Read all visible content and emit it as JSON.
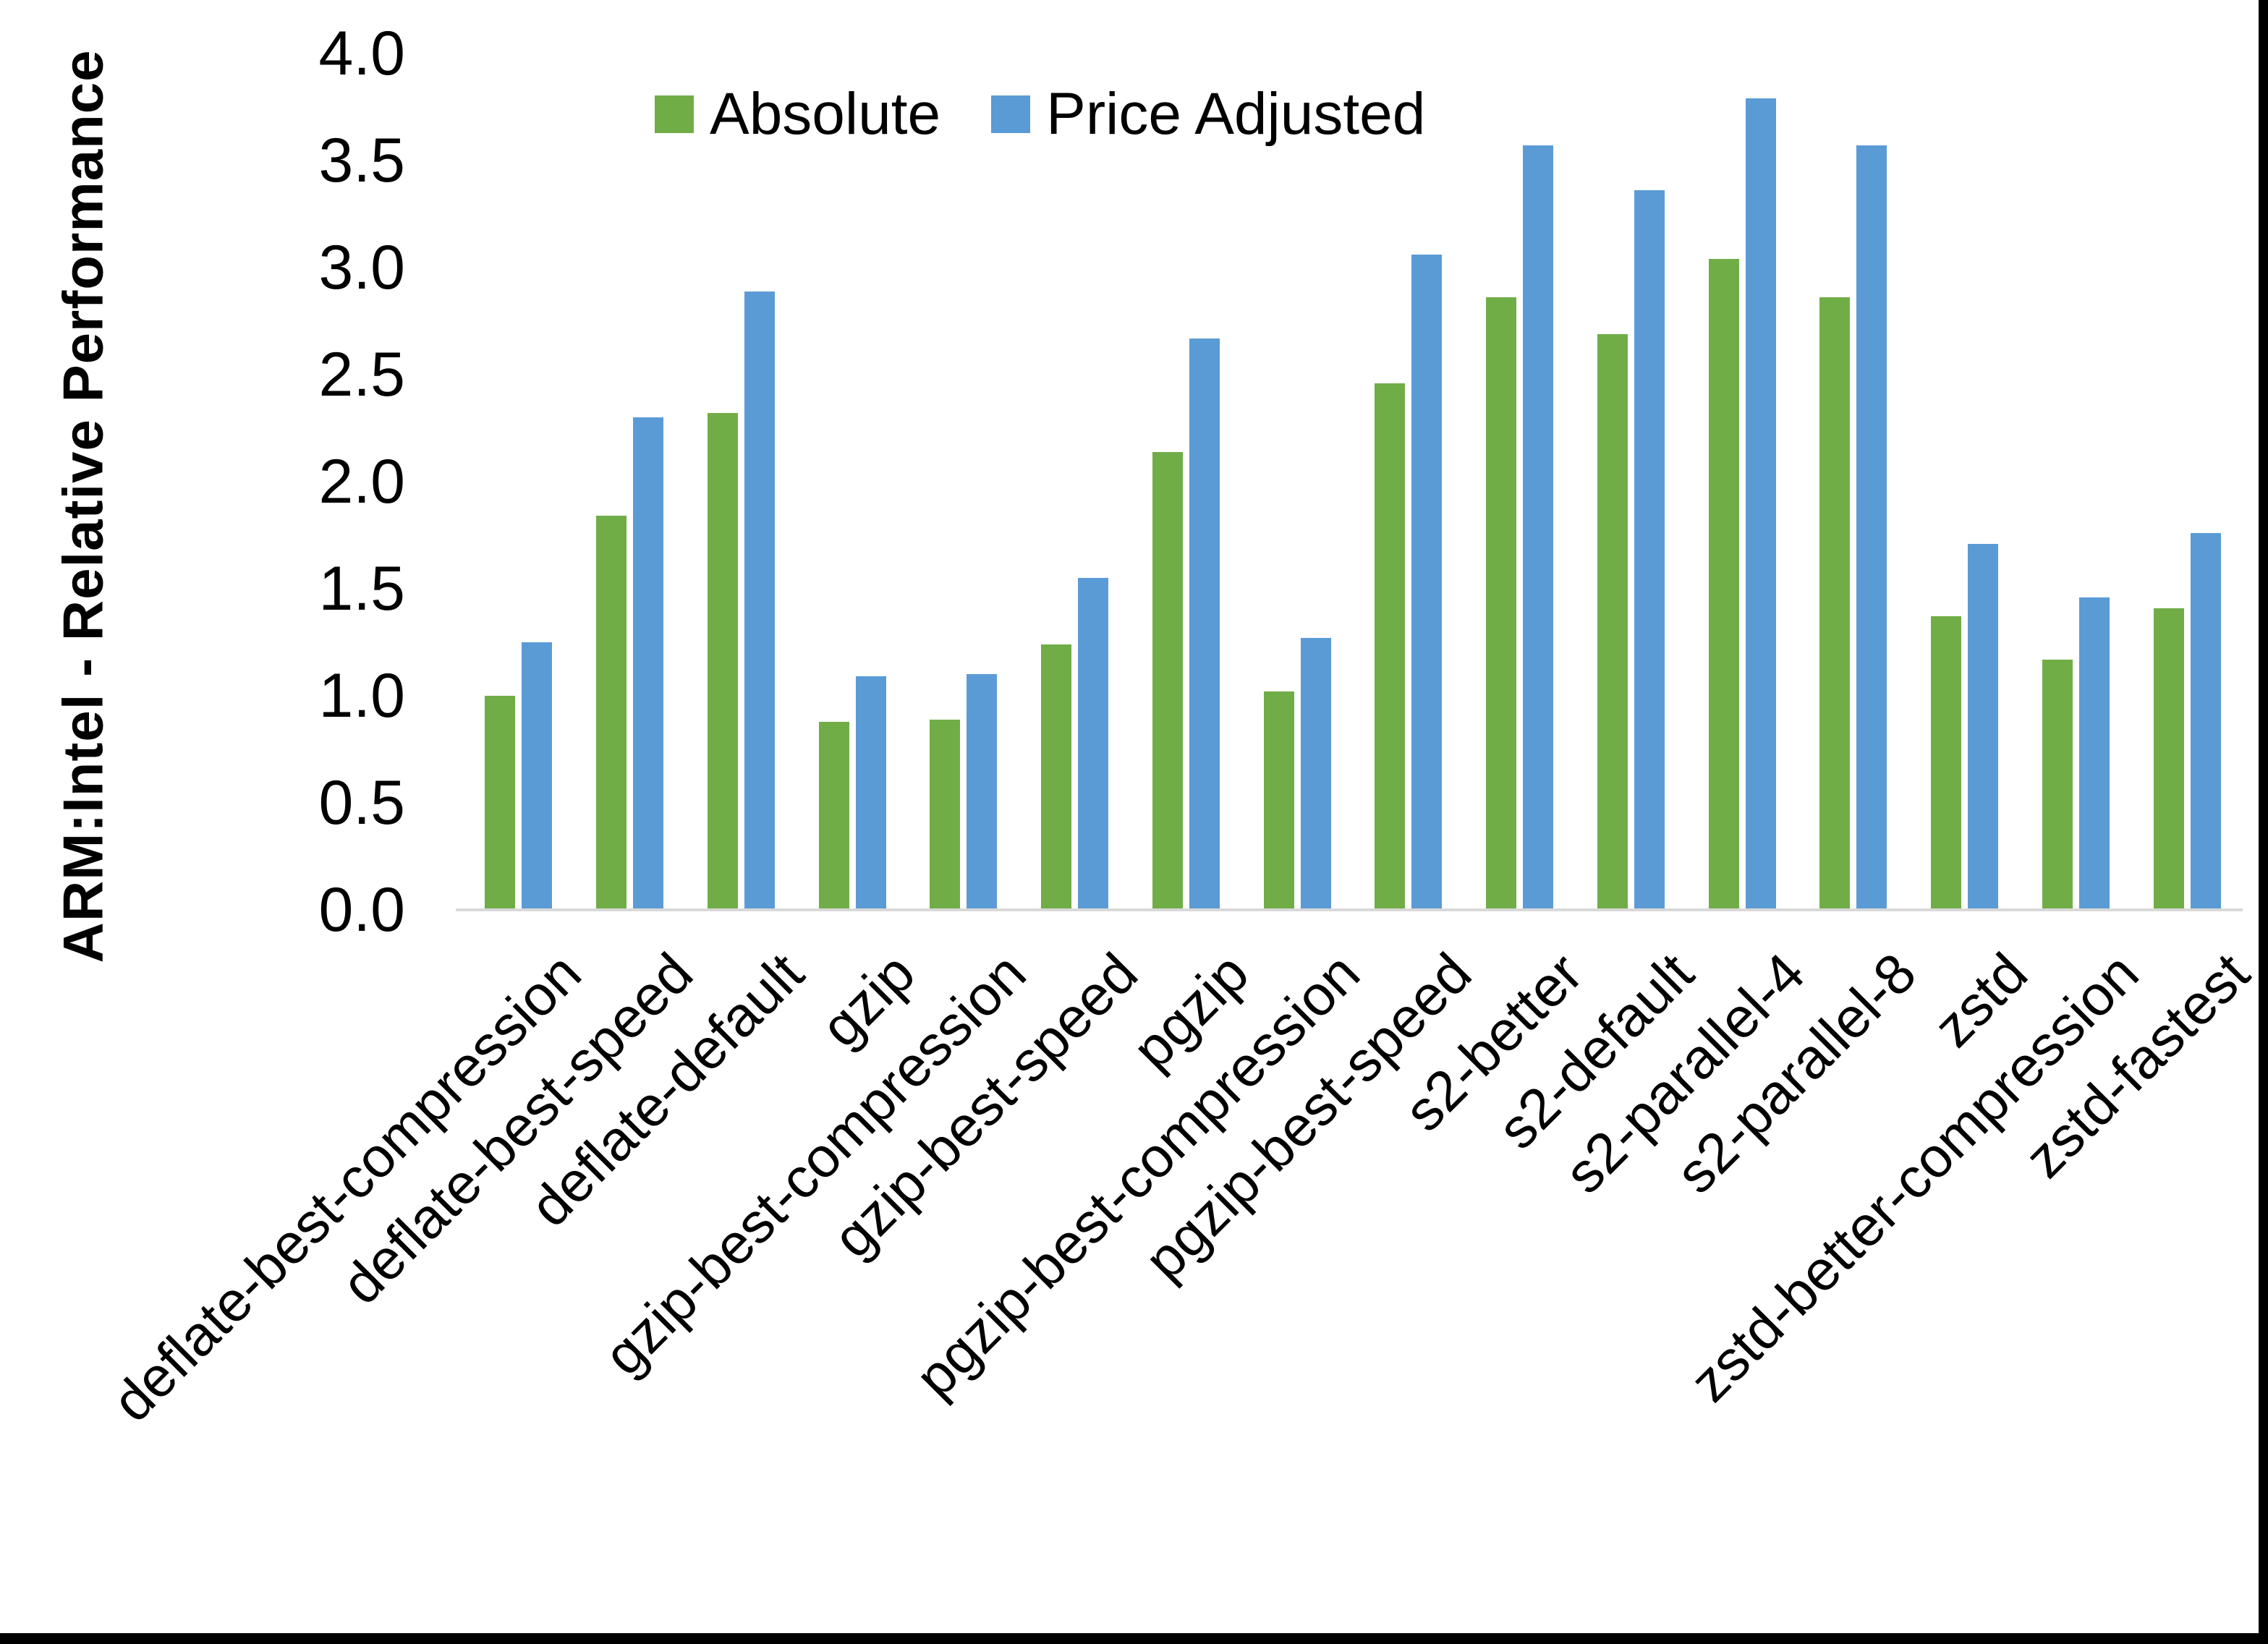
{
  "chart_data": {
    "type": "bar",
    "title": "",
    "ylabel": "ARM:Intel - Relative Performance",
    "xlabel": "",
    "ylim": [
      0.0,
      4.0
    ],
    "ytick_step": 0.5,
    "yticks": [
      "0.0",
      "0.5",
      "1.0",
      "1.5",
      "2.0",
      "2.5",
      "3.0",
      "3.5",
      "4.0"
    ],
    "grid": "off",
    "legend_position": "top-center",
    "axis_line_color": "#d9d9d9",
    "categories": [
      "deflate-best-compression",
      "deflate-best-speed",
      "deflate-default",
      "gzip",
      "gzip-best-compression",
      "gzip-best-speed",
      "pgzip",
      "pgzip-best-compression",
      "pgzip-best-speed",
      "s2-better",
      "s2-default",
      "s2-parallel-4",
      "s2-parallel-8",
      "zstd",
      "zstd-better-compression",
      "zstd-fastest"
    ],
    "series": [
      {
        "name": "Absolute",
        "color": "#70AD47",
        "values": [
          1.0,
          1.84,
          2.32,
          0.88,
          0.89,
          1.24,
          2.14,
          1.02,
          2.46,
          2.86,
          2.69,
          3.04,
          2.86,
          1.37,
          1.17,
          1.41
        ]
      },
      {
        "name": "Price Adjusted",
        "color": "#5B9BD5",
        "values": [
          1.25,
          2.3,
          2.89,
          1.09,
          1.1,
          1.55,
          2.67,
          1.27,
          3.06,
          3.57,
          3.36,
          3.79,
          3.57,
          1.71,
          1.46,
          1.76
        ]
      }
    ]
  }
}
